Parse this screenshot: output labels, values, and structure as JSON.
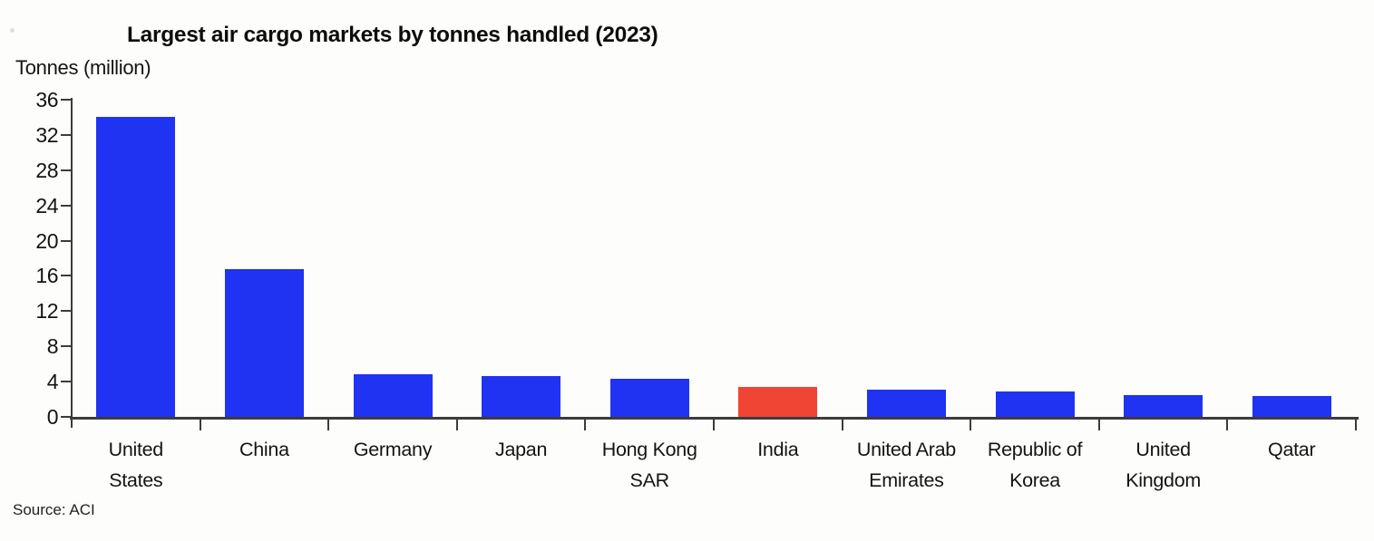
{
  "header": {
    "title": "Largest air cargo markets by tonnes handled (2023)"
  },
  "source_note": "Source: ACI",
  "colors": {
    "bar_default": "#2033f2",
    "bar_highlight": "#f04534",
    "axis": "#3c3c3c",
    "text": "#141414",
    "background": "#fdfdfb"
  },
  "chart_data": {
    "type": "bar",
    "title": "Largest air cargo markets by tonnes handled (2023)",
    "ylabel": "Tonnes (million)",
    "xlabel": "",
    "categories": [
      "United States",
      "China",
      "Germany",
      "Japan",
      "Hong Kong SAR",
      "India",
      "United Arab Emirates",
      "Republic of Korea",
      "United Kingdom",
      "Qatar"
    ],
    "category_labels_wrapped": [
      "United\nStates",
      "China",
      "Germany",
      "Japan",
      "Hong Kong\nSAR",
      "India",
      "United Arab\nEmirates",
      "Republic of\nKorea",
      "United\nKingdom",
      "Qatar"
    ],
    "values": [
      34,
      16.8,
      4.8,
      4.6,
      4.35,
      3.4,
      3.05,
      2.9,
      2.5,
      2.4
    ],
    "bar_colors": [
      "#2033f2",
      "#2033f2",
      "#2033f2",
      "#2033f2",
      "#2033f2",
      "#f04534",
      "#2033f2",
      "#2033f2",
      "#2033f2",
      "#2033f2"
    ],
    "highlight": {
      "category": "India",
      "color": "#f04534"
    },
    "y_ticks": [
      0,
      4,
      8,
      12,
      16,
      20,
      24,
      28,
      32,
      36
    ],
    "ylim": [
      0,
      36
    ],
    "grid": false,
    "legend": "none",
    "source": "Source: ACI"
  }
}
